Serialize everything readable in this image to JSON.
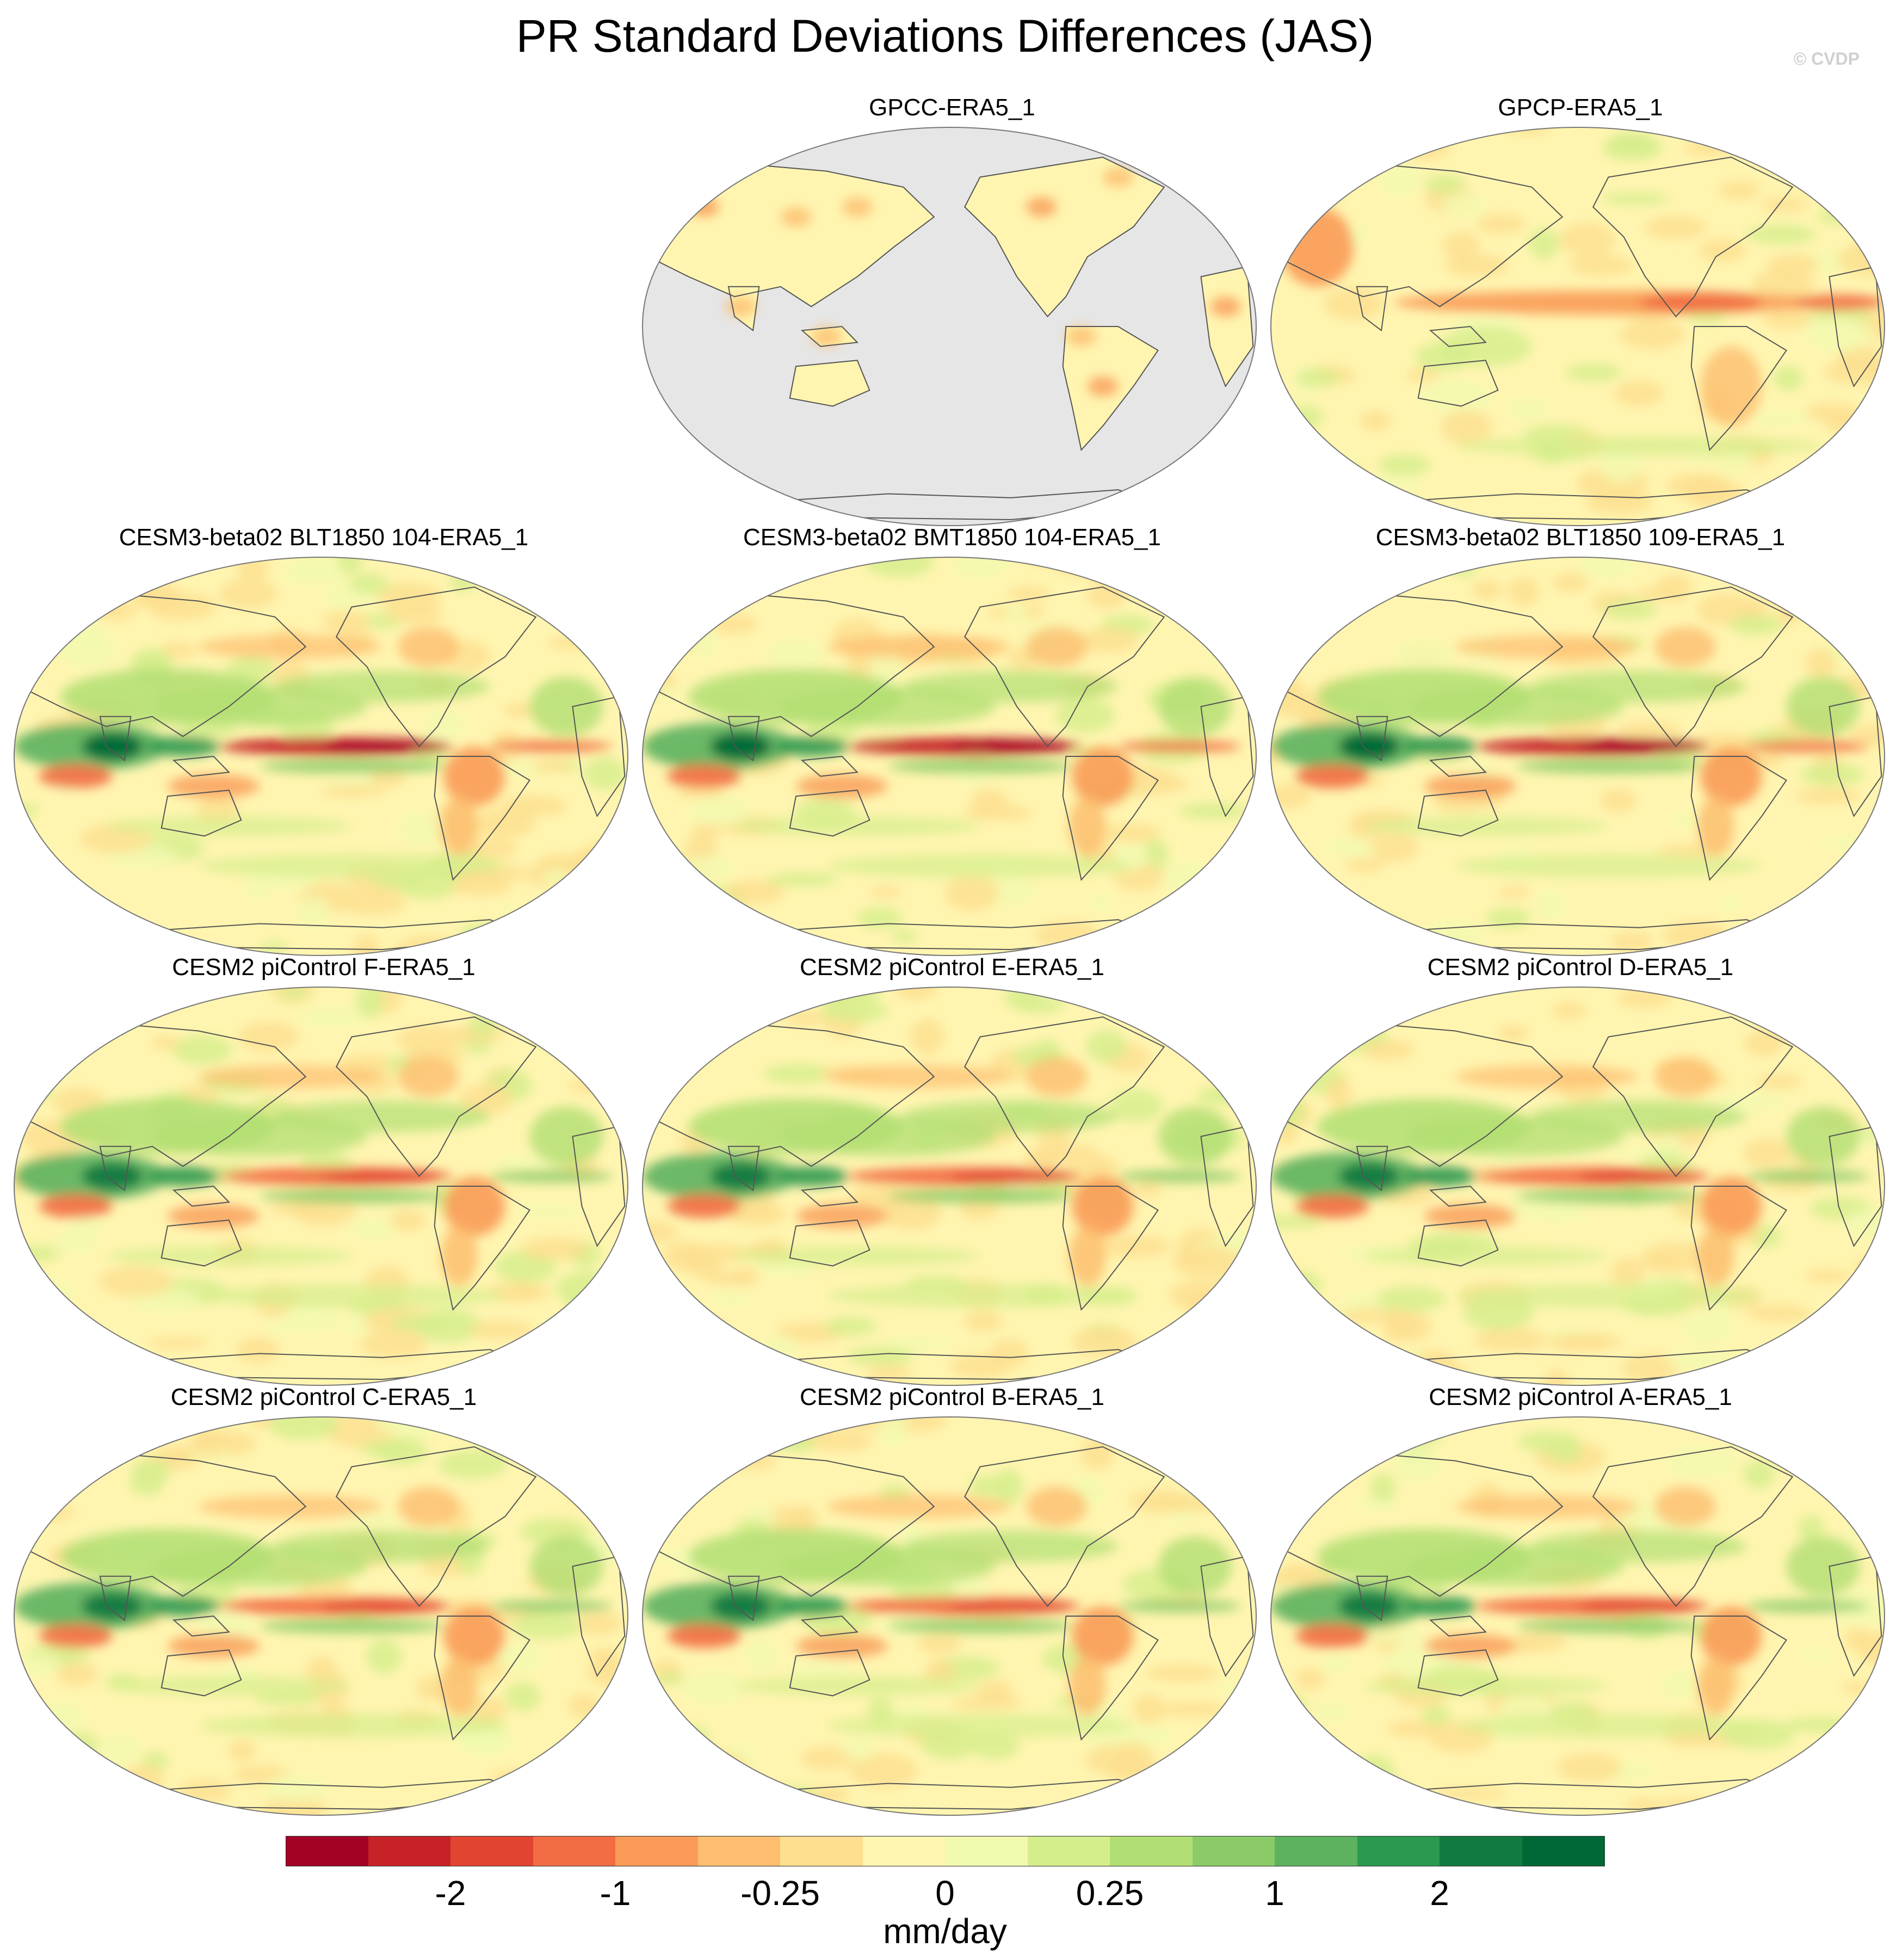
{
  "title": "PR Standard Deviations Differences (JAS)",
  "copyright": "© CVDP",
  "units": "mm/day",
  "panels": [
    {
      "label": "GPCC-ERA5_1",
      "row": 0,
      "col": 1,
      "land_only": true
    },
    {
      "label": "GPCP-ERA5_1",
      "row": 0,
      "col": 2,
      "land_only": false
    },
    {
      "label": "CESM3-beta02 BLT1850 104-ERA5_1",
      "row": 1,
      "col": 0
    },
    {
      "label": "CESM3-beta02 BMT1850 104-ERA5_1",
      "row": 1,
      "col": 1
    },
    {
      "label": "CESM3-beta02 BLT1850 109-ERA5_1",
      "row": 1,
      "col": 2
    },
    {
      "label": "CESM2 piControl F-ERA5_1",
      "row": 2,
      "col": 0
    },
    {
      "label": "CESM2 piControl E-ERA5_1",
      "row": 2,
      "col": 1
    },
    {
      "label": "CESM2 piControl D-ERA5_1",
      "row": 2,
      "col": 2
    },
    {
      "label": "CESM2 piControl C-ERA5_1",
      "row": 3,
      "col": 0
    },
    {
      "label": "CESM2 piControl B-ERA5_1",
      "row": 3,
      "col": 1
    },
    {
      "label": "CESM2 piControl A-ERA5_1",
      "row": 3,
      "col": 2
    }
  ],
  "colorbar": {
    "colors": [
      "#a50026",
      "#c62227",
      "#e14430",
      "#f26d43",
      "#f99b57",
      "#fdbe6f",
      "#fddf8f",
      "#fff5b0",
      "#f2fab0",
      "#d5ee8c",
      "#b1df73",
      "#8acb67",
      "#5cb25f",
      "#2c9950",
      "#117a40",
      "#006837"
    ],
    "tick_labels": [
      "-2",
      "-1",
      "-0.25",
      "0",
      "0.25",
      "1",
      "2"
    ],
    "tick_boundaries": [
      2,
      4,
      6,
      8,
      10,
      12,
      14
    ]
  },
  "colors": {
    "missing_fill": "#e6e6e6",
    "coast": "#555555"
  }
}
